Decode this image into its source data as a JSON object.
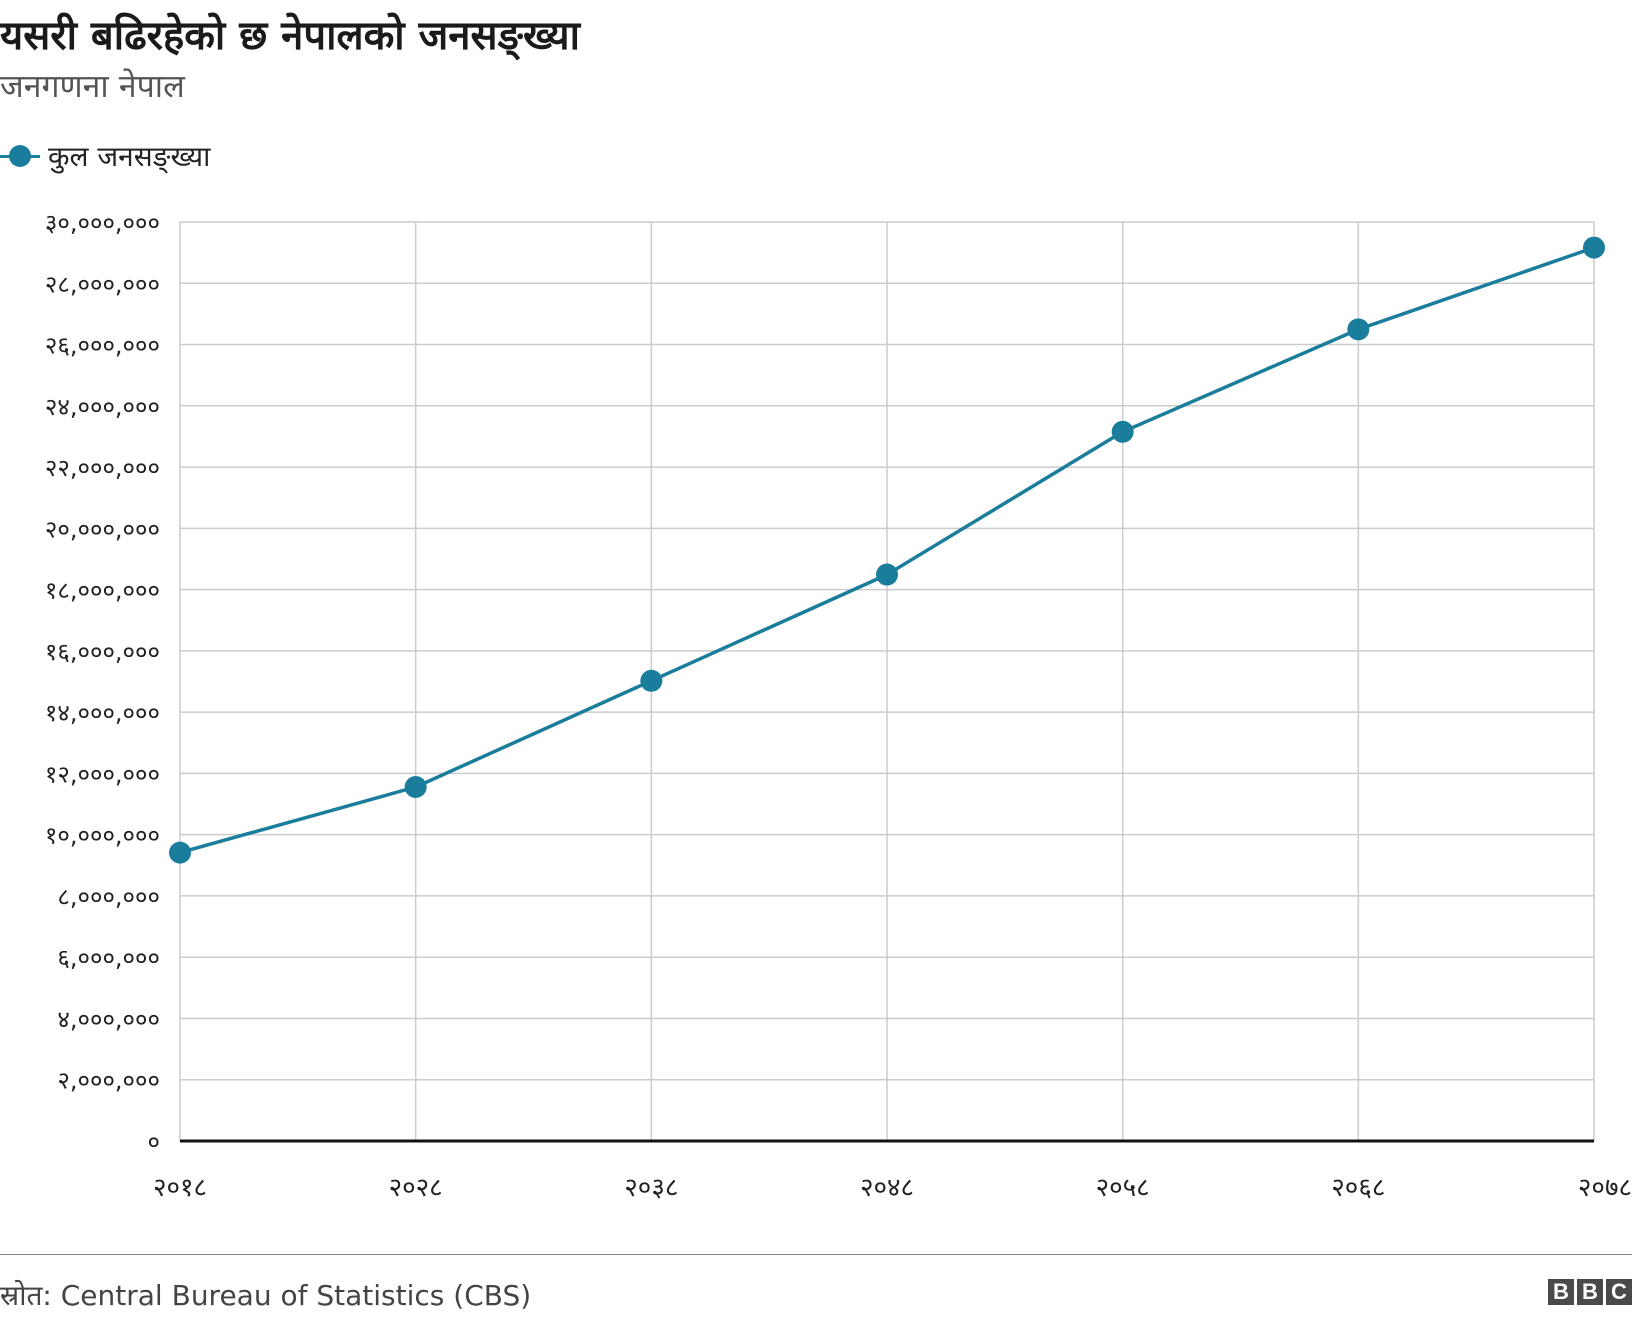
{
  "header": {
    "title": "यसरी बढिरहेको छ नेपालको जनसङ्ख्या",
    "subtitle": "जनगणना नेपाल"
  },
  "legend": {
    "label": "कुल जनसङ्ख्या",
    "color": "#1b7d9c"
  },
  "chart_data": {
    "type": "line",
    "title": "यसरी बढिरहेको छ नेपालको जनसङ्ख्या",
    "subtitle": "जनगणना नेपाल",
    "xlabel": "",
    "ylabel": "",
    "categories": [
      "२०१८",
      "२०२८",
      "२०३८",
      "२०४८",
      "२०५८",
      "२०६८",
      "२०७८"
    ],
    "series": [
      {
        "name": "कुल जनसङ्ख्या",
        "color": "#1b7d9c",
        "values": [
          9412996,
          11555983,
          15022839,
          18491097,
          23151423,
          26494504,
          29164578
        ]
      }
    ],
    "ylim": [
      0,
      30000000
    ],
    "yticks": [
      0,
      2000000,
      4000000,
      6000000,
      8000000,
      10000000,
      12000000,
      14000000,
      16000000,
      18000000,
      20000000,
      22000000,
      24000000,
      26000000,
      28000000,
      30000000
    ],
    "ytick_labels": [
      "०",
      "२,०००,०००",
      "४,०००,०००",
      "६,०००,०००",
      "८,०००,०००",
      "१०,०००,०००",
      "१२,०००,०००",
      "१४,०००,०००",
      "१६,०००,०००",
      "१८,०००,०००",
      "२०,०००,०००",
      "२२,०००,०००",
      "२४,०००,०००",
      "२६,०००,०००",
      "२८,०००,०००",
      "३०,०००,०००"
    ],
    "grid": true,
    "legend_position": "top-left"
  },
  "footer": {
    "source": "स्रोत: Central Bureau of Statistics (CBS)",
    "logo_letters": [
      "B",
      "B",
      "C"
    ]
  }
}
